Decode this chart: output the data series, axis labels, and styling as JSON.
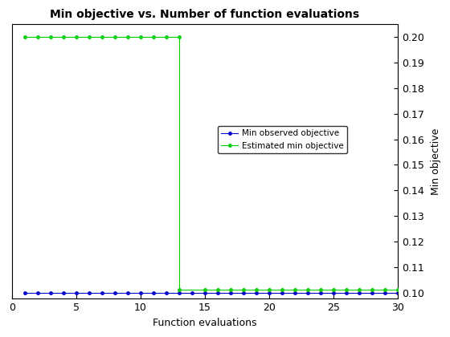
{
  "title": "Min objective vs. Number of function evaluations",
  "xlabel": "Function evaluations",
  "ylabel": "Min objective",
  "xlim": [
    0,
    30
  ],
  "ylim": [
    0.0975,
    0.205
  ],
  "yticks": [
    0.1,
    0.11,
    0.12,
    0.13,
    0.14,
    0.15,
    0.16,
    0.17,
    0.18,
    0.19,
    0.2
  ],
  "xticks": [
    0,
    5,
    10,
    15,
    20,
    25,
    30
  ],
  "blue_line": {
    "x": [
      1,
      2,
      3,
      4,
      5,
      6,
      7,
      8,
      9,
      10,
      11,
      12,
      13,
      14,
      15,
      16,
      17,
      18,
      19,
      20,
      21,
      22,
      23,
      24,
      25,
      26,
      27,
      28,
      29,
      30
    ],
    "y": [
      0.1,
      0.1,
      0.1,
      0.1,
      0.1,
      0.1,
      0.1,
      0.1,
      0.1,
      0.1,
      0.1,
      0.1,
      0.1,
      0.1,
      0.1,
      0.1,
      0.1,
      0.1,
      0.1,
      0.1,
      0.1,
      0.1,
      0.1,
      0.1,
      0.1,
      0.1,
      0.1,
      0.1,
      0.1,
      0.1
    ],
    "color": "#0000cc",
    "label": "Min observed objective",
    "marker": ".",
    "markersize": 5,
    "linewidth": 0.8
  },
  "green_line": {
    "x": [
      1,
      2,
      3,
      4,
      5,
      6,
      7,
      8,
      9,
      10,
      11,
      12,
      13,
      13,
      15,
      16,
      17,
      18,
      19,
      20,
      21,
      22,
      23,
      24,
      25,
      26,
      27,
      28,
      29,
      30
    ],
    "y": [
      0.2,
      0.2,
      0.2,
      0.2,
      0.2,
      0.2,
      0.2,
      0.2,
      0.2,
      0.2,
      0.2,
      0.2,
      0.2,
      0.101,
      0.101,
      0.101,
      0.101,
      0.101,
      0.101,
      0.101,
      0.101,
      0.101,
      0.101,
      0.101,
      0.101,
      0.101,
      0.101,
      0.101,
      0.101,
      0.101
    ],
    "color": "#00cc00",
    "label": "Estimated min objective",
    "marker": ".",
    "markersize": 5,
    "linewidth": 0.8
  },
  "background_color": "#ffffff"
}
